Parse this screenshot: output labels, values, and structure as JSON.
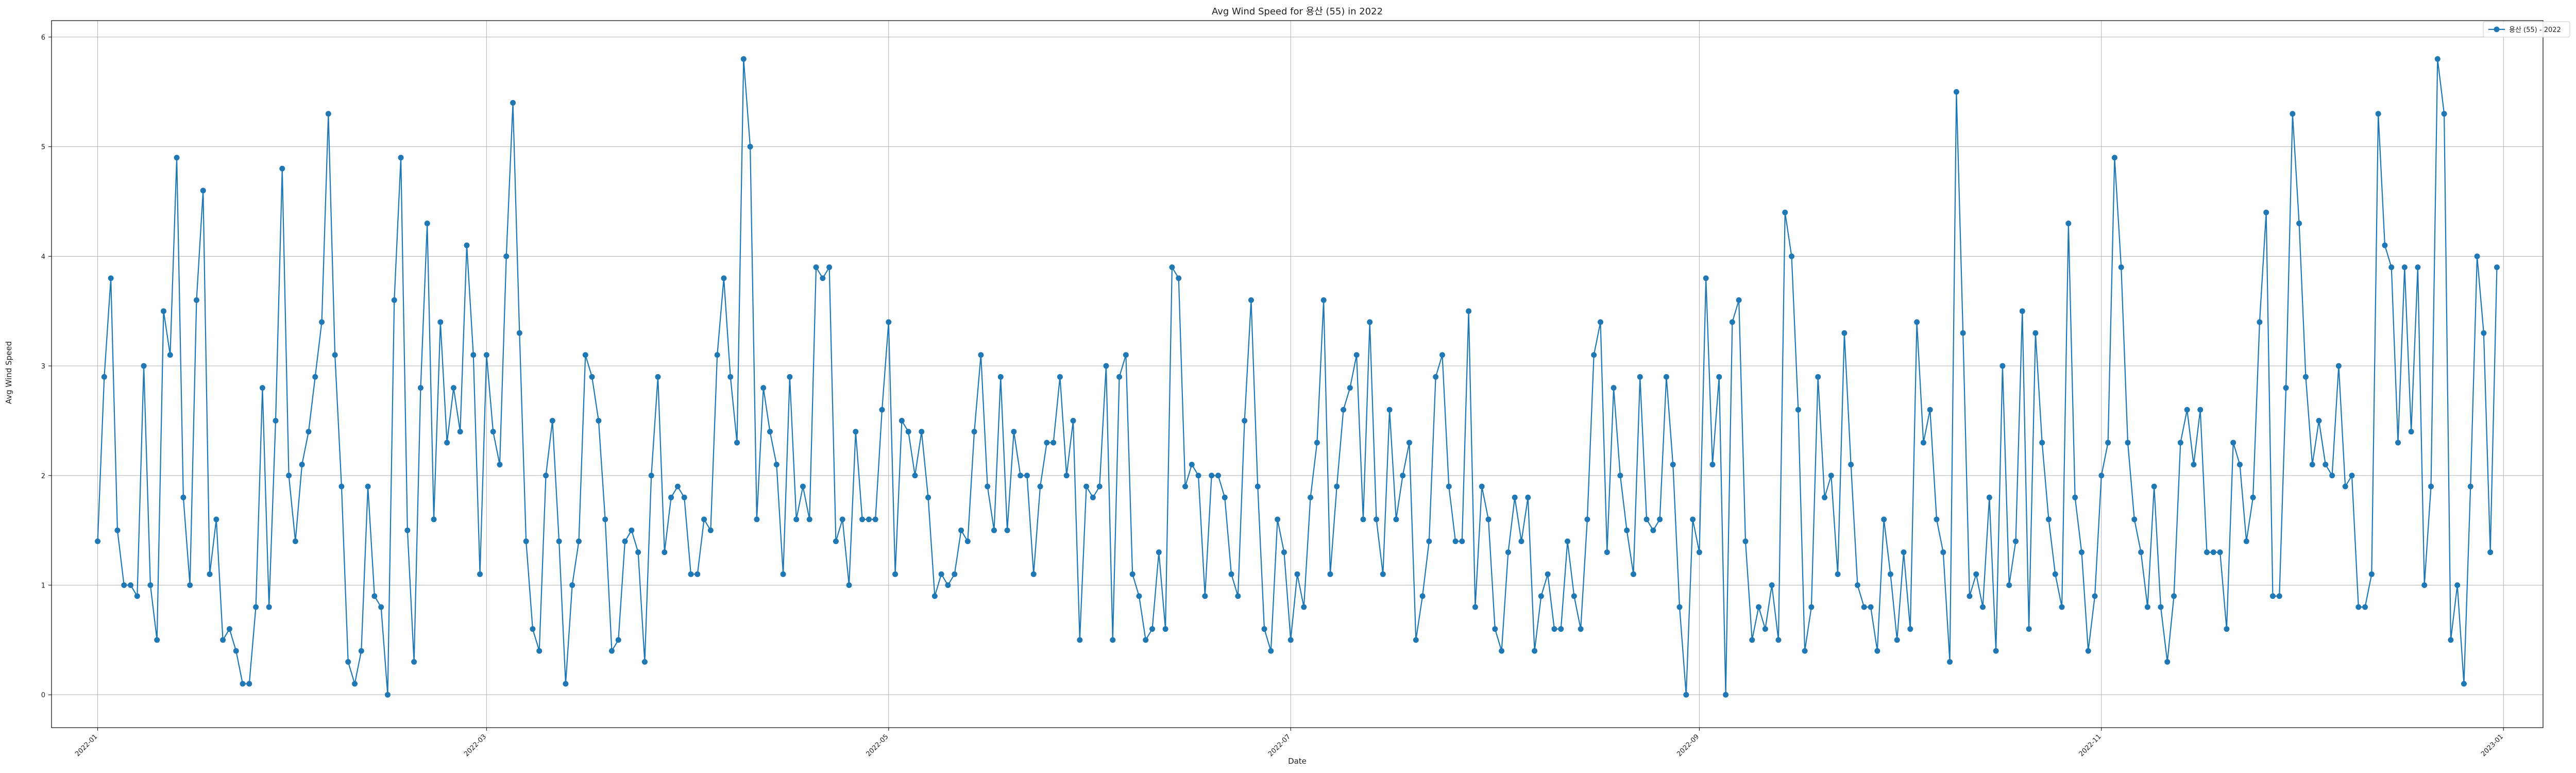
{
  "chart_data": {
    "type": "line",
    "title": "Avg Wind Speed for 용산 (55) in 2022",
    "xlabel": "Date",
    "ylabel": "Avg Wind Speed",
    "ylim": [
      -0.3,
      6.15
    ],
    "xlim": [
      "2021-12-25",
      "2023-01-07"
    ],
    "grid": true,
    "legend_position": "top-right",
    "line_color": "#1f77b4",
    "marker": "circle",
    "x_ticks": [
      "2022-01",
      "2022-03",
      "2022-05",
      "2022-07",
      "2022-09",
      "2022-11",
      "2023-01"
    ],
    "y_ticks": [
      0,
      1,
      2,
      3,
      4,
      5,
      6
    ],
    "start_date": "2022-01-01",
    "series": [
      {
        "name": "용산 (55) - 2022",
        "values": [
          1.4,
          2.9,
          3.8,
          1.5,
          1.0,
          1.0,
          0.9,
          3.0,
          1.0,
          0.5,
          3.5,
          3.1,
          4.9,
          1.8,
          1.0,
          3.6,
          4.6,
          1.1,
          1.6,
          0.5,
          0.6,
          0.4,
          0.1,
          0.1,
          0.8,
          2.8,
          0.8,
          2.5,
          4.8,
          2.0,
          1.4,
          2.1,
          2.4,
          2.9,
          3.4,
          5.3,
          3.1,
          1.9,
          0.3,
          0.1,
          0.4,
          1.9,
          0.9,
          0.8,
          0.0,
          3.6,
          4.9,
          1.5,
          0.3,
          2.8,
          4.3,
          1.6,
          3.4,
          2.3,
          2.8,
          2.4,
          4.1,
          3.1,
          1.1,
          3.1,
          2.4,
          2.1,
          4.0,
          5.4,
          3.3,
          1.4,
          0.6,
          0.4,
          2.0,
          2.5,
          1.4,
          0.1,
          1.0,
          1.4,
          3.1,
          2.9,
          2.5,
          1.6,
          0.4,
          0.5,
          1.4,
          1.5,
          1.3,
          0.3,
          2.0,
          2.9,
          1.3,
          1.8,
          1.9,
          1.8,
          1.1,
          1.1,
          1.6,
          1.5,
          3.1,
          3.8,
          2.9,
          2.3,
          5.8,
          5.0,
          1.6,
          2.8,
          2.4,
          2.1,
          1.1,
          2.9,
          1.6,
          1.9,
          1.6,
          3.9,
          3.8,
          3.9,
          1.4,
          1.6,
          1.0,
          2.4,
          1.6,
          1.6,
          1.6,
          2.6,
          3.4,
          1.1,
          2.5,
          2.4,
          2.0,
          2.4,
          1.8,
          0.9,
          1.1,
          1.0,
          1.1,
          1.5,
          1.4,
          2.4,
          3.1,
          1.9,
          1.5,
          2.9,
          1.5,
          2.4,
          2.0,
          2.0,
          1.1,
          1.9,
          2.3,
          2.3,
          2.9,
          2.0,
          2.5,
          0.5,
          1.9,
          1.8,
          1.9,
          3.0,
          0.5,
          2.9,
          3.1,
          1.1,
          0.9,
          0.5,
          0.6,
          1.3,
          0.6,
          3.9,
          3.8,
          1.9,
          2.1,
          2.0,
          0.9,
          2.0,
          2.0,
          1.8,
          1.1,
          0.9,
          2.5,
          3.6,
          1.9,
          0.6,
          0.4,
          1.6,
          1.3,
          0.5,
          1.1,
          0.8,
          1.8,
          2.3,
          3.6,
          1.1,
          1.9,
          2.6,
          2.8,
          3.1,
          1.6,
          3.4,
          1.6,
          1.1,
          2.6,
          1.6,
          2.0,
          2.3,
          0.5,
          0.9,
          1.4,
          2.9,
          3.1,
          1.9,
          1.4,
          1.4,
          3.5,
          0.8,
          1.9,
          1.6,
          0.6,
          0.4,
          1.3,
          1.8,
          1.4,
          1.8,
          0.4,
          0.9,
          1.1,
          0.6,
          0.6,
          1.4,
          0.9,
          0.6,
          1.6,
          3.1,
          3.4,
          1.3,
          2.8,
          2.0,
          1.5,
          1.1,
          2.9,
          1.6,
          1.5,
          1.6,
          2.9,
          2.1,
          0.8,
          0.0,
          1.6,
          1.3,
          3.8,
          2.1,
          2.9,
          0.0,
          3.4,
          3.6,
          1.4,
          0.5,
          0.8,
          0.6,
          1.0,
          0.5,
          4.4,
          4.0,
          2.6,
          0.4,
          0.8,
          2.9,
          1.8,
          2.0,
          1.1,
          3.3,
          2.1,
          1.0,
          0.8,
          0.8,
          0.4,
          1.6,
          1.1,
          0.5,
          1.3,
          0.6,
          3.4,
          2.3,
          2.6,
          1.6,
          1.3,
          0.3,
          5.5,
          3.3,
          0.9,
          1.1,
          0.8,
          1.8,
          0.4,
          3.0,
          1.0,
          1.4,
          3.5,
          0.6,
          3.3,
          2.3,
          1.6,
          1.1,
          0.8,
          4.3,
          1.8,
          1.3,
          0.4,
          0.9,
          2.0,
          2.3,
          4.9,
          3.9,
          2.3,
          1.6,
          1.3,
          0.8,
          1.9,
          0.8,
          0.3,
          0.9,
          2.3,
          2.6,
          2.1,
          2.6,
          1.3,
          1.3,
          1.3,
          0.6,
          2.3,
          2.1,
          1.4,
          1.8,
          3.4,
          4.4,
          0.9,
          0.9,
          2.8,
          5.3,
          4.3,
          2.9,
          2.1,
          2.5,
          2.1,
          2.0,
          3.0,
          1.9,
          2.0,
          0.8,
          0.8,
          1.1,
          5.3,
          4.1,
          3.9,
          2.3,
          3.9,
          2.4,
          3.9,
          1.0,
          1.9,
          5.8,
          5.3,
          0.5,
          1.0,
          0.1,
          1.9,
          4.0,
          3.3,
          1.3,
          3.9
        ]
      }
    ]
  }
}
